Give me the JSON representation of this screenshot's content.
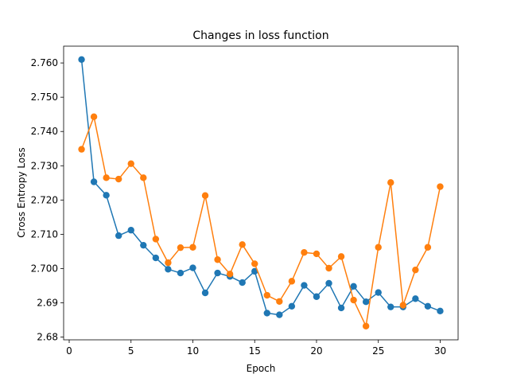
{
  "chart_data": {
    "type": "line",
    "title": "Changes in loss function",
    "xlabel": "Epoch",
    "ylabel": "Cross Entropy Loss",
    "xlim": [
      -0.45,
      31.45
    ],
    "ylim": [
      2.6792,
      2.7649
    ],
    "xticks": [
      0,
      5,
      10,
      15,
      20,
      25,
      30
    ],
    "yticks": [
      2.68,
      2.69,
      2.7,
      2.71,
      2.72,
      2.73,
      2.74,
      2.75,
      2.76
    ],
    "ytick_labels": [
      "2.68",
      "2.69",
      "2.700",
      "2.710",
      "2.720",
      "2.730",
      "2.740",
      "2.750",
      "2.760"
    ],
    "grid": false,
    "x": [
      1,
      2,
      3,
      4,
      5,
      6,
      7,
      8,
      9,
      10,
      11,
      12,
      13,
      14,
      15,
      16,
      17,
      18,
      19,
      20,
      21,
      22,
      23,
      24,
      25,
      26,
      27,
      28,
      29,
      30
    ],
    "series": [
      {
        "color": "#1f77b4",
        "values": [
          2.761,
          2.7253,
          2.7214,
          2.7096,
          2.7112,
          2.7068,
          2.7031,
          2.6998,
          2.6987,
          2.7002,
          2.6929,
          2.6987,
          2.6977,
          2.6959,
          2.6992,
          2.687,
          2.6865,
          2.689,
          2.6951,
          2.6918,
          2.6957,
          2.6885,
          2.6948,
          2.6903,
          2.693,
          2.6888,
          2.6888,
          2.6912,
          2.689,
          2.6876
        ]
      },
      {
        "color": "#ff7f0e",
        "values": [
          2.7348,
          2.7443,
          2.7265,
          2.7261,
          2.7306,
          2.7265,
          2.7086,
          2.7017,
          2.7061,
          2.7062,
          2.7213,
          2.7026,
          2.6984,
          2.707,
          2.7014,
          2.6922,
          2.6904,
          2.6963,
          2.7047,
          2.7043,
          2.7001,
          2.7035,
          2.6908,
          2.6832,
          2.7062,
          2.7251,
          2.6893,
          2.6996,
          2.7062,
          2.7239
        ]
      }
    ]
  }
}
